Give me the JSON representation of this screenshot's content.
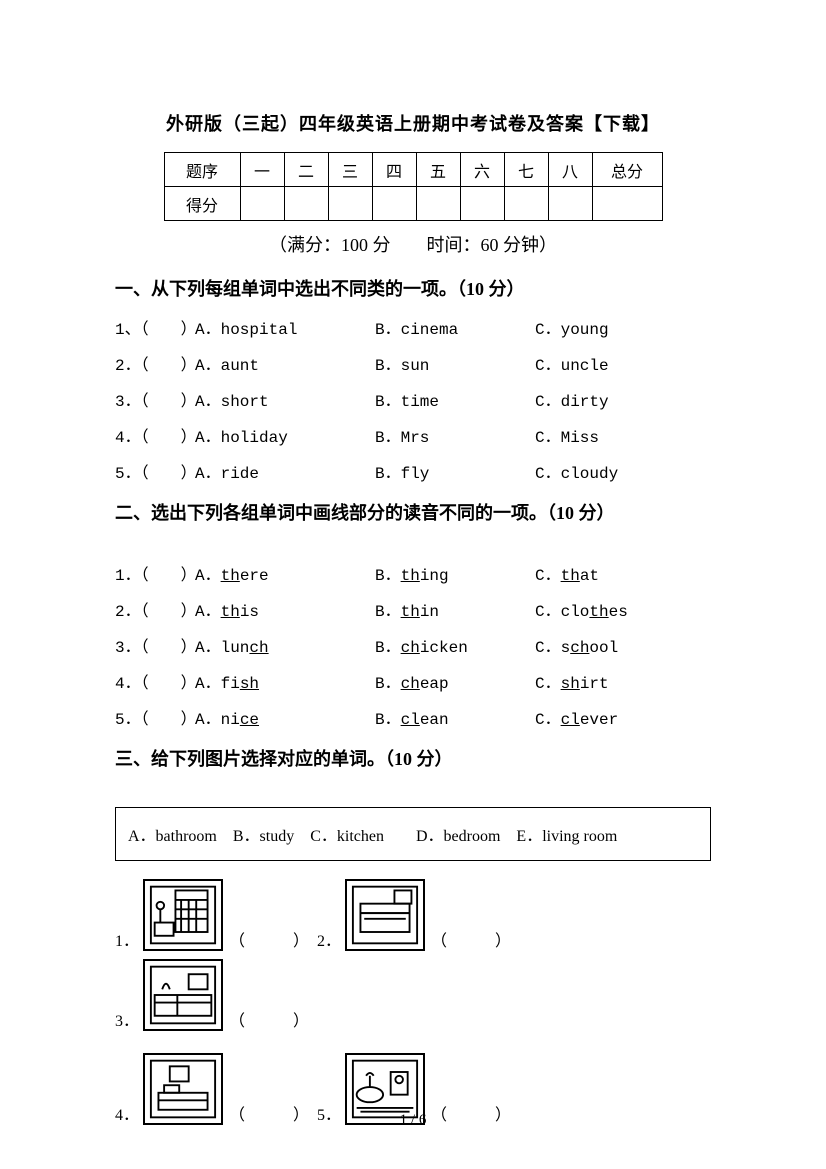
{
  "title": "外研版（三起）四年级英语上册期中考试卷及答案【下载】",
  "score_table": {
    "row_header": "题序",
    "cols": [
      "一",
      "二",
      "三",
      "四",
      "五",
      "六",
      "七",
      "八"
    ],
    "total": "总分",
    "score_label": "得分"
  },
  "meta": "（满分：100 分　　时间：60 分钟）",
  "section1": {
    "heading": "一、从下列每组单词中选出不同类的一项。（10 分）",
    "items": [
      {
        "n": "1、",
        "a": "A．hospital",
        "b": "B．cinema",
        "c": "C．young"
      },
      {
        "n": "2．",
        "a": "A．aunt",
        "b": "B．sun",
        "c": "C．uncle"
      },
      {
        "n": "3．",
        "a": "A．short",
        "b": "B．time",
        "c": "C．dirty"
      },
      {
        "n": "4．",
        "a": "A．holiday",
        "b": "B．Mrs",
        "c": "C．Miss"
      },
      {
        "n": "5．",
        "a": "A．ride",
        "b": "B．fly",
        "c": "C．cloudy"
      }
    ]
  },
  "section2": {
    "heading": "二、选出下列各组单词中画线部分的读音不同的一项。（10 分）",
    "items": [
      {
        "n": "1．",
        "pa": "A．",
        "wa1": "th",
        "wa2": "ere",
        "pb": "B．",
        "wb1": "th",
        "wb2": "ing",
        "pc": "C．",
        "wc1": "th",
        "wc2": "at"
      },
      {
        "n": "2．",
        "pa": "A．",
        "wa1": "th",
        "wa2": "is",
        "pb": "B．",
        "wb1": "th",
        "wb2": "in",
        "pc": "C．",
        "wc0": "clo",
        "wc1": "th",
        "wc2": "es"
      },
      {
        "n": "3．",
        "pa": "A．",
        "wa0": "lun",
        "wa1": "ch",
        "pb": "B．",
        "wb1": "ch",
        "wb2": "icken",
        "pc": "C．",
        "wc0": "s",
        "wc1": "ch",
        "wc2": "ool"
      },
      {
        "n": "4．",
        "pa": "A．",
        "wa0": "fi",
        "wa1": "sh",
        "pb": "B．",
        "wb1": "ch",
        "wb2": "eap",
        "pc": "C．",
        "wc1": "sh",
        "wc2": "irt"
      },
      {
        "n": "5．",
        "pa": "A．",
        "wa0": "ni",
        "wa1": "ce",
        "pb": "B．",
        "wb1": "cl",
        "wb2": "ean",
        "pc": "C．",
        "wc1": "cl",
        "wc2": "ever"
      }
    ]
  },
  "section3": {
    "heading": "三、给下列图片选择对应的单词。（10 分）",
    "choices": "A．bathroom　B．study　C．kitchen　　D．bedroom　E．living room",
    "blank": "（　　　）",
    "label1": "1．",
    "label2": "2．",
    "label3": "3．",
    "label4": "4．",
    "label5": "5．"
  },
  "pagenum": "1 / 6"
}
